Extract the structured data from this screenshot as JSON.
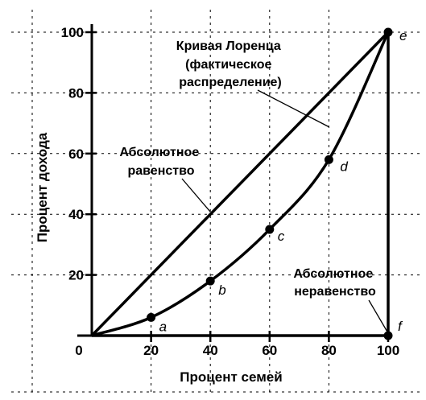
{
  "chart_data": {
    "type": "line",
    "xlabel": "Процент семей",
    "ylabel": "Процент дохода",
    "xlim": [
      0,
      100
    ],
    "ylim": [
      0,
      100
    ],
    "origin_label": "0",
    "x_ticks": [
      {
        "value": 20,
        "label": "20"
      },
      {
        "value": 40,
        "label": "40"
      },
      {
        "value": 60,
        "label": "60"
      },
      {
        "value": 80,
        "label": "80"
      },
      {
        "value": 100,
        "label": "100"
      }
    ],
    "y_ticks": [
      {
        "value": 20,
        "label": "20"
      },
      {
        "value": 40,
        "label": "40"
      },
      {
        "value": 60,
        "label": "60"
      },
      {
        "value": 80,
        "label": "80"
      },
      {
        "value": 100,
        "label": "100"
      }
    ],
    "grid": "dashed",
    "series": [
      {
        "key": "equality",
        "points": [
          [
            0,
            0
          ],
          [
            100,
            100
          ]
        ]
      },
      {
        "key": "lorenz",
        "points": [
          [
            0,
            0
          ],
          [
            20,
            6
          ],
          [
            40,
            18
          ],
          [
            60,
            35
          ],
          [
            80,
            58
          ],
          [
            100,
            100
          ]
        ],
        "markers": [
          {
            "x": 20,
            "y": 6,
            "label": "a"
          },
          {
            "x": 40,
            "y": 18,
            "label": "b"
          },
          {
            "x": 60,
            "y": 35,
            "label": "c"
          },
          {
            "x": 80,
            "y": 58,
            "label": "d"
          },
          {
            "x": 100,
            "y": 100,
            "label": "e"
          },
          {
            "x": 100,
            "y": 0,
            "label": "f"
          }
        ]
      },
      {
        "key": "inequality",
        "points": [
          [
            0,
            0
          ],
          [
            100,
            0
          ],
          [
            100,
            100
          ]
        ]
      }
    ],
    "annotations": [
      {
        "key": "lorenz",
        "lines": [
          "Кривая Лоренца",
          "(фактическое",
          "распределение)"
        ],
        "points_to": [
          80,
          68
        ]
      },
      {
        "key": "equality",
        "lines": [
          "Абсолютное",
          "равенство"
        ],
        "points_to": [
          40,
          40
        ]
      },
      {
        "key": "inequality",
        "lines": [
          "Абсолютное",
          "неравенство"
        ],
        "points_to": [
          100,
          0
        ]
      }
    ]
  }
}
